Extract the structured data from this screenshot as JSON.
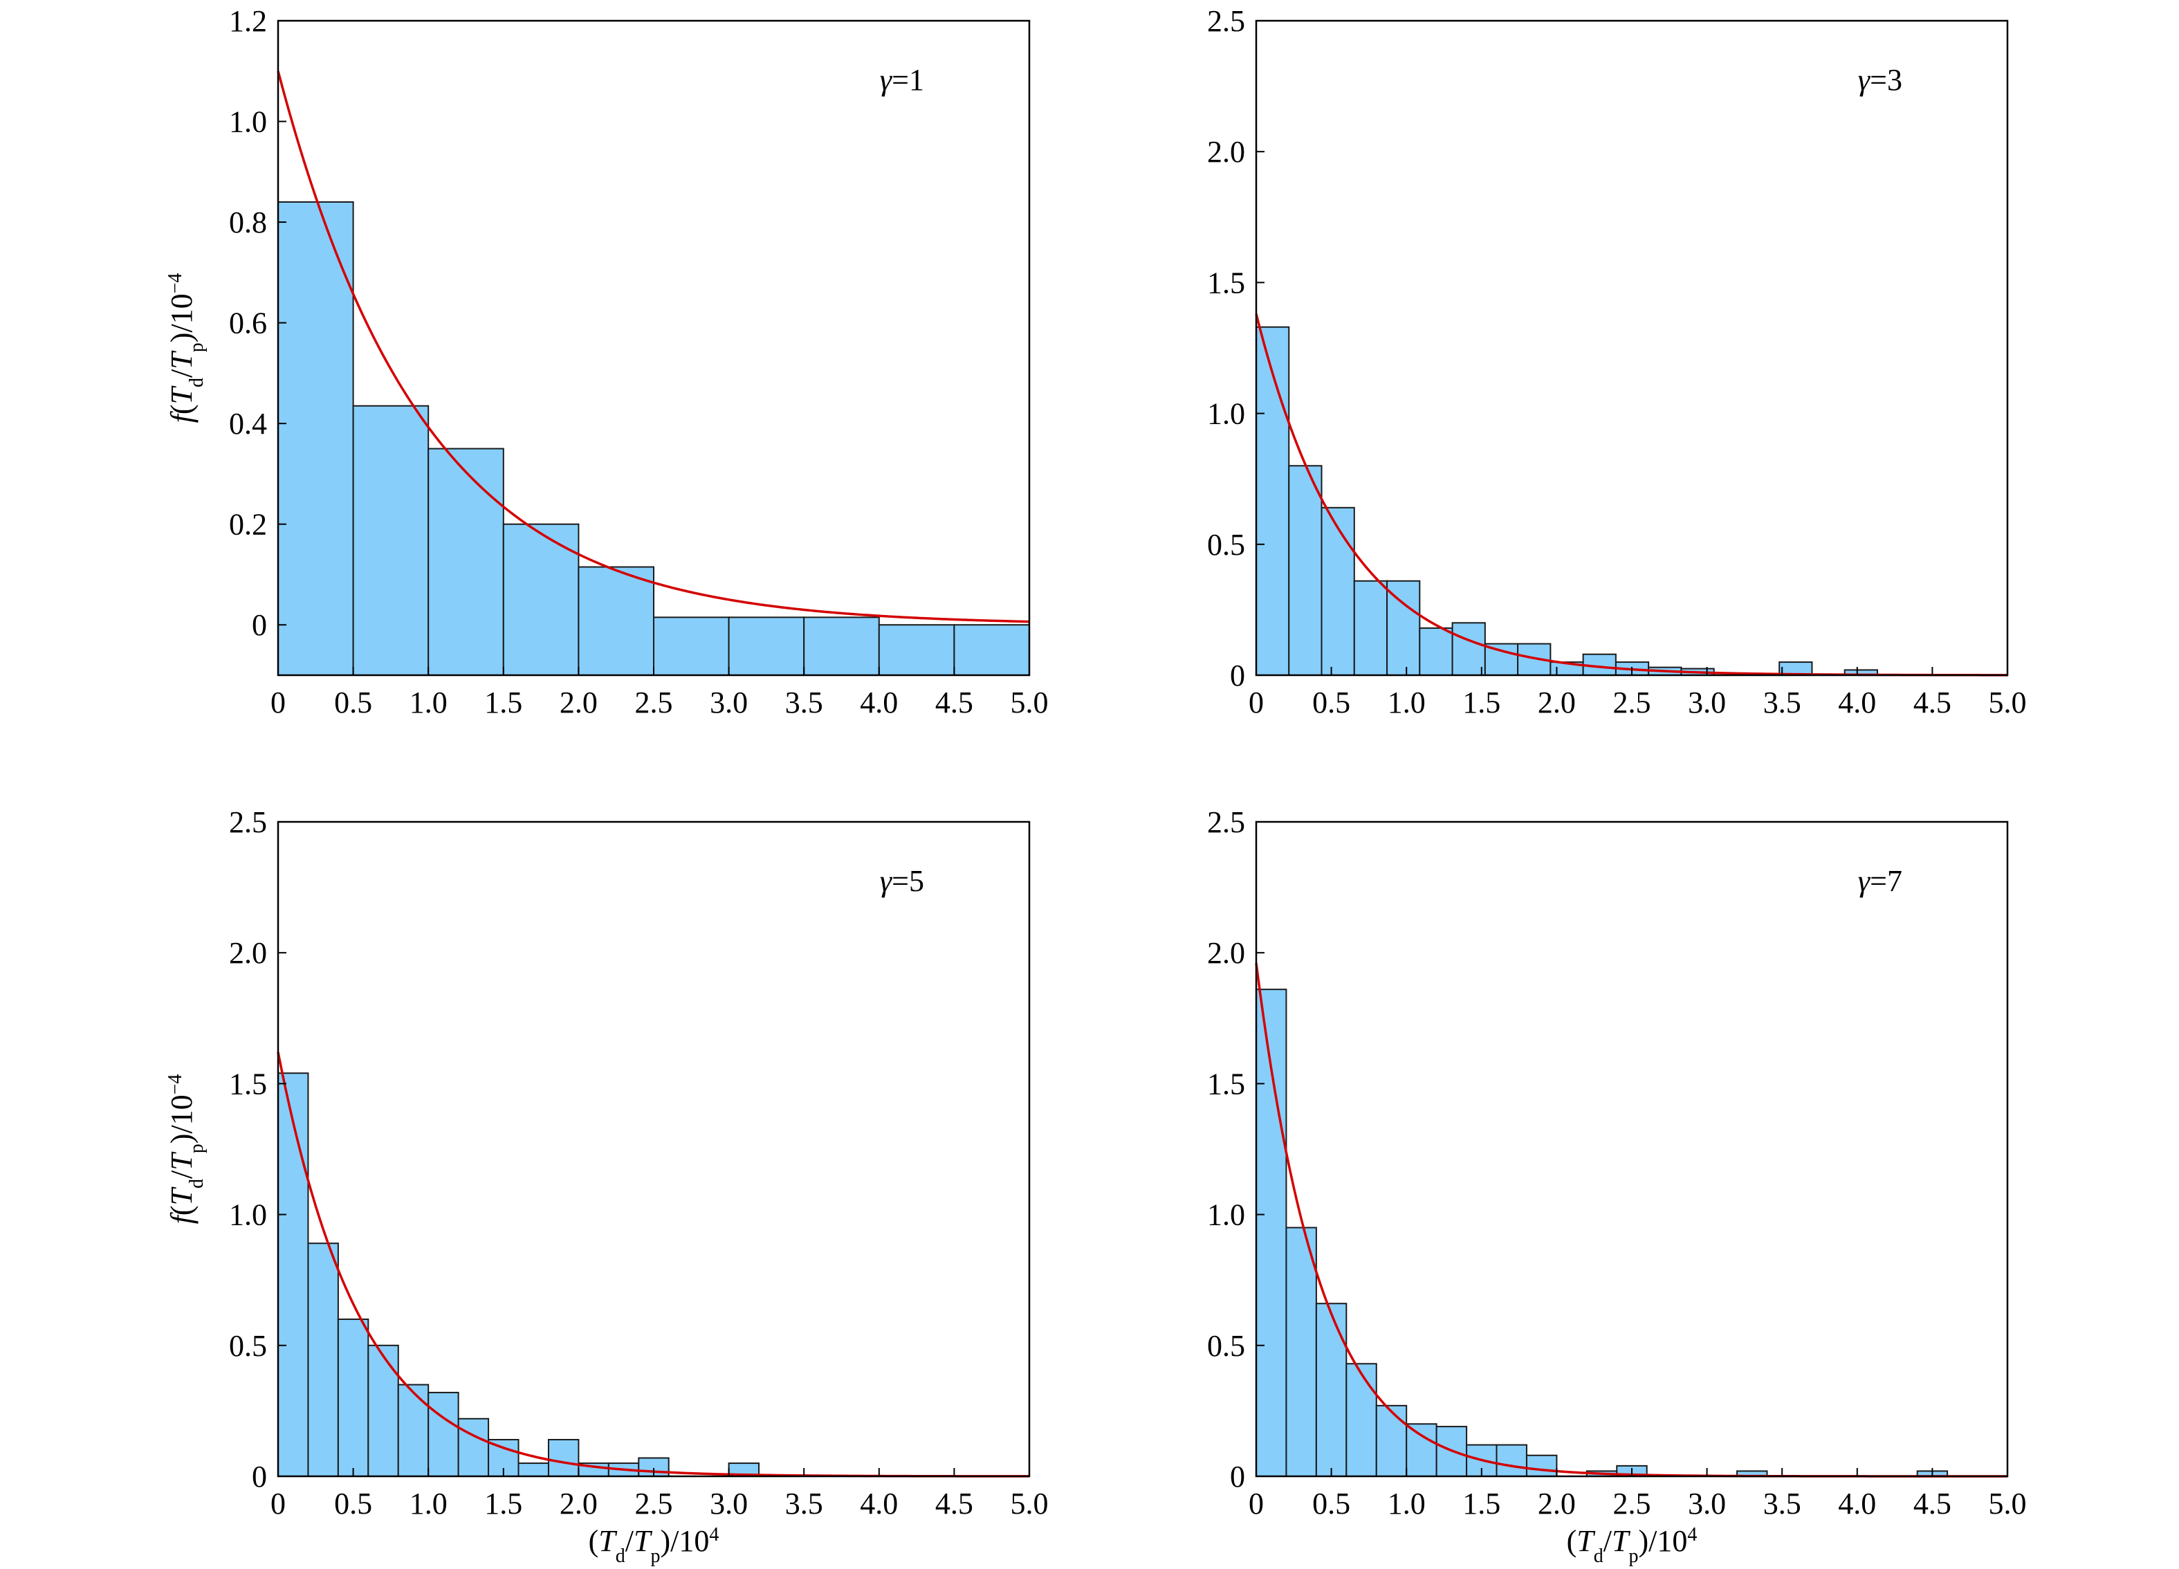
{
  "chart_data": [
    {
      "type": "bar",
      "panel": "top-left",
      "annotation": {
        "symbol": "γ",
        "text": "=1"
      },
      "bin_width": 0.5,
      "bins": [
        {
          "x0": 0.0,
          "x1": 0.5,
          "value": 0.84
        },
        {
          "x0": 0.5,
          "x1": 1.0,
          "value": 0.435
        },
        {
          "x0": 1.0,
          "x1": 1.5,
          "value": 0.35
        },
        {
          "x0": 1.5,
          "x1": 2.0,
          "value": 0.2
        },
        {
          "x0": 2.0,
          "x1": 2.5,
          "value": 0.115
        },
        {
          "x0": 2.5,
          "x1": 3.0,
          "value": 0.015
        },
        {
          "x0": 3.0,
          "x1": 3.5,
          "value": 0.015
        },
        {
          "x0": 3.5,
          "x1": 4.0,
          "value": 0.015
        },
        {
          "x0": 4.0,
          "x1": 4.5,
          "value": 0.0
        },
        {
          "x0": 4.5,
          "x1": 5.0,
          "value": 0.0
        }
      ],
      "curve": {
        "type": "exponential",
        "a": 1.1,
        "b": 1.03,
        "c": 0.0
      },
      "xlim": [
        0,
        5.0
      ],
      "ylim": [
        -0.1,
        1.2
      ],
      "xticks": [
        "0",
        "0.5",
        "1.0",
        "1.5",
        "2.0",
        "2.5",
        "3.0",
        "3.5",
        "4.0",
        "4.5",
        "5.0"
      ],
      "yticks": [
        {
          "v": 0,
          "label": "0"
        },
        {
          "v": 0.2,
          "label": "0.2"
        },
        {
          "v": 0.4,
          "label": "0.4"
        },
        {
          "v": 0.6,
          "label": "0.6"
        },
        {
          "v": 0.8,
          "label": "0.8"
        },
        {
          "v": 1.0,
          "label": "1.0"
        },
        {
          "v": 1.2,
          "label": "1.2"
        }
      ],
      "ylabel": "f(Td/Tp)/10−4",
      "xlabel": ""
    },
    {
      "type": "bar",
      "panel": "top-right",
      "annotation": {
        "symbol": "γ",
        "text": "=3"
      },
      "bin_width": 0.2176,
      "bins": [
        {
          "x0": 0.0,
          "value": 1.33
        },
        {
          "x0": 0.2176,
          "value": 0.8
        },
        {
          "x0": 0.4352,
          "value": 0.64
        },
        {
          "x0": 0.6528,
          "value": 0.36
        },
        {
          "x0": 0.8704,
          "value": 0.36
        },
        {
          "x0": 1.088,
          "value": 0.18
        },
        {
          "x0": 1.3056,
          "value": 0.2
        },
        {
          "x0": 1.5232,
          "value": 0.12
        },
        {
          "x0": 1.7408,
          "value": 0.12
        },
        {
          "x0": 1.9584,
          "value": 0.05
        },
        {
          "x0": 2.176,
          "value": 0.08
        },
        {
          "x0": 2.3936,
          "value": 0.05
        },
        {
          "x0": 2.6112,
          "value": 0.03
        },
        {
          "x0": 2.8288,
          "value": 0.025
        },
        {
          "x0": 3.0464,
          "value": 0.0
        },
        {
          "x0": 3.264,
          "value": 0.0
        },
        {
          "x0": 3.4816,
          "value": 0.05
        },
        {
          "x0": 3.6992,
          "value": 0.0
        },
        {
          "x0": 3.9168,
          "value": 0.02
        }
      ],
      "curve": {
        "type": "exponential",
        "a": 1.38,
        "b": 1.65,
        "c": 0.0
      },
      "xlim": [
        0,
        5.0
      ],
      "ylim": [
        0,
        2.5
      ],
      "xticks": [
        "0",
        "0.5",
        "1.0",
        "1.5",
        "2.0",
        "2.5",
        "3.0",
        "3.5",
        "4.0",
        "4.5",
        "5.0"
      ],
      "yticks": [
        {
          "v": 0,
          "label": "0"
        },
        {
          "v": 0.5,
          "label": "0.5"
        },
        {
          "v": 1.0,
          "label": "1.0"
        },
        {
          "v": 1.5,
          "label": "1.5"
        },
        {
          "v": 2.0,
          "label": "2.0"
        },
        {
          "v": 2.5,
          "label": "2.5"
        }
      ],
      "ylabel": "",
      "xlabel": ""
    },
    {
      "type": "bar",
      "panel": "bottom-left",
      "annotation": {
        "symbol": "γ",
        "text": "=5"
      },
      "bin_width": 0.2,
      "bins": [
        {
          "x0": 0.0,
          "value": 1.54
        },
        {
          "x0": 0.2,
          "value": 0.89
        },
        {
          "x0": 0.4,
          "value": 0.6
        },
        {
          "x0": 0.6,
          "value": 0.5
        },
        {
          "x0": 0.8,
          "value": 0.35
        },
        {
          "x0": 1.0,
          "value": 0.32
        },
        {
          "x0": 1.2,
          "value": 0.22
        },
        {
          "x0": 1.4,
          "value": 0.14
        },
        {
          "x0": 1.6,
          "value": 0.05
        },
        {
          "x0": 1.8,
          "value": 0.14
        },
        {
          "x0": 2.0,
          "value": 0.05
        },
        {
          "x0": 2.2,
          "value": 0.05
        },
        {
          "x0": 2.4,
          "value": 0.07
        },
        {
          "x0": 2.6,
          "value": 0.0
        },
        {
          "x0": 2.8,
          "value": 0.0
        },
        {
          "x0": 3.0,
          "value": 0.05
        }
      ],
      "curve": {
        "type": "exponential",
        "a": 1.62,
        "b": 1.8,
        "c": 0.0
      },
      "xlim": [
        0,
        5.0
      ],
      "ylim": [
        0,
        2.5
      ],
      "xticks": [
        "0",
        "0.5",
        "1.0",
        "1.5",
        "2.0",
        "2.5",
        "3.0",
        "3.5",
        "4.0",
        "4.5",
        "5.0"
      ],
      "yticks": [
        {
          "v": 0,
          "label": "0"
        },
        {
          "v": 0.5,
          "label": "0.5"
        },
        {
          "v": 1.0,
          "label": "1.0"
        },
        {
          "v": 1.5,
          "label": "1.5"
        },
        {
          "v": 2.0,
          "label": "2.0"
        },
        {
          "v": 2.5,
          "label": "2.5"
        }
      ],
      "ylabel": "f(Td/Tp)/10−4",
      "xlabel": "(Td/Tp)/104"
    },
    {
      "type": "bar",
      "panel": "bottom-right",
      "annotation": {
        "symbol": "γ",
        "text": "=7"
      },
      "bin_width": 0.2,
      "bins": [
        {
          "x0": 0.0,
          "value": 1.86
        },
        {
          "x0": 0.2,
          "value": 0.95
        },
        {
          "x0": 0.4,
          "value": 0.66
        },
        {
          "x0": 0.6,
          "value": 0.43
        },
        {
          "x0": 0.8,
          "value": 0.27
        },
        {
          "x0": 1.0,
          "value": 0.2
        },
        {
          "x0": 1.2,
          "value": 0.19
        },
        {
          "x0": 1.4,
          "value": 0.12
        },
        {
          "x0": 1.6,
          "value": 0.12
        },
        {
          "x0": 1.8,
          "value": 0.08
        },
        {
          "x0": 2.0,
          "value": 0.0
        },
        {
          "x0": 2.2,
          "value": 0.02
        },
        {
          "x0": 2.4,
          "value": 0.04
        },
        {
          "x0": 2.6,
          "value": 0.0
        },
        {
          "x0": 2.8,
          "value": 0.0
        },
        {
          "x0": 3.0,
          "value": 0.0
        },
        {
          "x0": 3.2,
          "value": 0.02
        },
        {
          "x0": 3.4,
          "value": 0.0
        },
        {
          "x0": 3.6,
          "value": 0.0
        },
        {
          "x0": 3.8,
          "value": 0.0
        },
        {
          "x0": 4.0,
          "value": 0.0
        },
        {
          "x0": 4.2,
          "value": 0.0
        },
        {
          "x0": 4.4,
          "value": 0.02
        }
      ],
      "curve": {
        "type": "exponential",
        "a": 1.96,
        "b": 2.3,
        "c": 0.0
      },
      "xlim": [
        0,
        5.0
      ],
      "ylim": [
        0,
        2.5
      ],
      "xticks": [
        "0",
        "0.5",
        "1.0",
        "1.5",
        "2.0",
        "2.5",
        "3.0",
        "3.5",
        "4.0",
        "4.5",
        "5.0"
      ],
      "yticks": [
        {
          "v": 0,
          "label": "0"
        },
        {
          "v": 0.5,
          "label": "0.5"
        },
        {
          "v": 1.0,
          "label": "1.0"
        },
        {
          "v": 1.5,
          "label": "1.5"
        },
        {
          "v": 2.0,
          "label": "2.0"
        },
        {
          "v": 2.5,
          "label": "2.5"
        }
      ],
      "ylabel": "",
      "xlabel": "(Td/Tp)/104"
    }
  ],
  "colors": {
    "bar_fill": "#87CEFA",
    "bar_stroke": "#1a1a1a",
    "curve": "#D40000",
    "axis": "#000000"
  }
}
